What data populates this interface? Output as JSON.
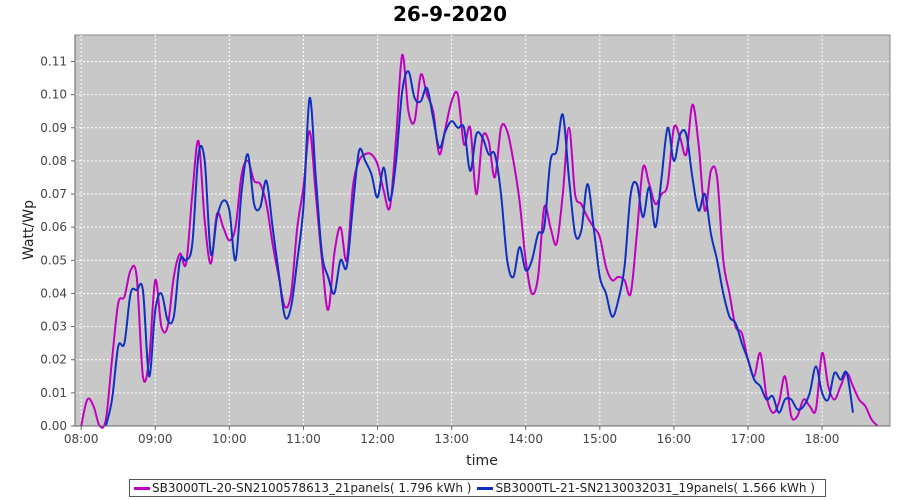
{
  "chart_data": {
    "type": "line",
    "title": "26-9-2020",
    "xlabel": "time",
    "ylabel": "Watt/Wp",
    "x_ticks": [
      "08:00",
      "09:00",
      "10:00",
      "11:00",
      "12:00",
      "13:00",
      "14:00",
      "15:00",
      "16:00",
      "17:00",
      "18:00"
    ],
    "y_ticks": [
      "0.00",
      "0.01",
      "0.02",
      "0.03",
      "0.04",
      "0.05",
      "0.06",
      "0.07",
      "0.08",
      "0.09",
      "0.10",
      "0.11"
    ],
    "xlim": [
      "07:55",
      "18:55"
    ],
    "ylim": [
      0,
      0.118
    ],
    "grid": true,
    "background": "#c8c8c8",
    "legend_position": "bottom",
    "series": [
      {
        "name": "SB3000TL-20-SN2100578613_21panels( 1.796 kWh )",
        "color": "#c000c0",
        "x": [
          "08:00",
          "08:05",
          "08:10",
          "08:15",
          "08:20",
          "08:25",
          "08:30",
          "08:35",
          "08:40",
          "08:45",
          "08:50",
          "08:55",
          "09:00",
          "09:05",
          "09:10",
          "09:15",
          "09:20",
          "09:25",
          "09:30",
          "09:35",
          "09:40",
          "09:45",
          "09:50",
          "09:55",
          "10:00",
          "10:05",
          "10:10",
          "10:15",
          "10:20",
          "10:25",
          "10:30",
          "10:35",
          "10:40",
          "10:45",
          "10:50",
          "10:55",
          "11:00",
          "11:05",
          "11:10",
          "11:15",
          "11:20",
          "11:25",
          "11:30",
          "11:35",
          "11:40",
          "11:45",
          "11:50",
          "11:55",
          "12:00",
          "12:05",
          "12:10",
          "12:15",
          "12:20",
          "12:25",
          "12:30",
          "12:35",
          "12:40",
          "12:45",
          "12:50",
          "12:55",
          "13:00",
          "13:05",
          "13:10",
          "13:15",
          "13:20",
          "13:25",
          "13:30",
          "13:35",
          "13:40",
          "13:45",
          "13:50",
          "13:55",
          "14:00",
          "14:05",
          "14:10",
          "14:15",
          "14:20",
          "14:25",
          "14:30",
          "14:35",
          "14:40",
          "14:45",
          "14:50",
          "14:55",
          "15:00",
          "15:05",
          "15:10",
          "15:15",
          "15:20",
          "15:25",
          "15:30",
          "15:35",
          "15:40",
          "15:45",
          "15:50",
          "15:55",
          "16:00",
          "16:05",
          "16:10",
          "16:15",
          "16:20",
          "16:25",
          "16:30",
          "16:35",
          "16:40",
          "16:45",
          "16:50",
          "16:55",
          "17:00",
          "17:05",
          "17:10",
          "17:15",
          "17:20",
          "17:25",
          "17:30",
          "17:35",
          "17:40",
          "17:45",
          "17:50",
          "17:55",
          "18:00",
          "18:05",
          "18:10",
          "18:15",
          "18:20",
          "18:25",
          "18:30",
          "18:35",
          "18:40",
          "18:45"
        ],
        "values": [
          0.0,
          0.008,
          0.006,
          0.0,
          0.002,
          0.02,
          0.037,
          0.039,
          0.047,
          0.045,
          0.015,
          0.02,
          0.044,
          0.03,
          0.03,
          0.045,
          0.052,
          0.049,
          0.07,
          0.086,
          0.062,
          0.049,
          0.064,
          0.06,
          0.056,
          0.06,
          0.076,
          0.08,
          0.074,
          0.073,
          0.067,
          0.055,
          0.045,
          0.036,
          0.04,
          0.06,
          0.072,
          0.089,
          0.07,
          0.05,
          0.035,
          0.052,
          0.06,
          0.05,
          0.072,
          0.08,
          0.082,
          0.082,
          0.079,
          0.071,
          0.066,
          0.087,
          0.112,
          0.095,
          0.092,
          0.106,
          0.1,
          0.095,
          0.082,
          0.09,
          0.098,
          0.1,
          0.085,
          0.09,
          0.07,
          0.087,
          0.086,
          0.075,
          0.09,
          0.089,
          0.08,
          0.068,
          0.05,
          0.04,
          0.045,
          0.066,
          0.06,
          0.055,
          0.07,
          0.09,
          0.07,
          0.067,
          0.063,
          0.06,
          0.057,
          0.048,
          0.044,
          0.045,
          0.044,
          0.04,
          0.058,
          0.078,
          0.073,
          0.067,
          0.07,
          0.073,
          0.09,
          0.087,
          0.082,
          0.097,
          0.085,
          0.065,
          0.077,
          0.075,
          0.05,
          0.04,
          0.03,
          0.028,
          0.02,
          0.015,
          0.022,
          0.009,
          0.004,
          0.007,
          0.015,
          0.003,
          0.003,
          0.008,
          0.006,
          0.005,
          0.022,
          0.012,
          0.008,
          0.012,
          0.016,
          0.012,
          0.008,
          0.006,
          0.002,
          0.0
        ]
      },
      {
        "name": "SB3000TL-21-SN2130032031_19panels( 1.566 kWh )",
        "color": "#1030c0",
        "x": [
          "08:00",
          "08:05",
          "08:10",
          "08:15",
          "08:20",
          "08:25",
          "08:30",
          "08:35",
          "08:40",
          "08:45",
          "08:50",
          "08:55",
          "09:00",
          "09:05",
          "09:10",
          "09:15",
          "09:20",
          "09:25",
          "09:30",
          "09:35",
          "09:40",
          "09:45",
          "09:50",
          "09:55",
          "10:00",
          "10:05",
          "10:10",
          "10:15",
          "10:20",
          "10:25",
          "10:30",
          "10:35",
          "10:40",
          "10:45",
          "10:50",
          "10:55",
          "11:00",
          "11:05",
          "11:10",
          "11:15",
          "11:20",
          "11:25",
          "11:30",
          "11:35",
          "11:40",
          "11:45",
          "11:50",
          "11:55",
          "12:00",
          "12:05",
          "12:10",
          "12:15",
          "12:20",
          "12:25",
          "12:30",
          "12:35",
          "12:40",
          "12:45",
          "12:50",
          "12:55",
          "13:00",
          "13:05",
          "13:10",
          "13:15",
          "13:20",
          "13:25",
          "13:30",
          "13:35",
          "13:40",
          "13:45",
          "13:50",
          "13:55",
          "14:00",
          "14:05",
          "14:10",
          "14:15",
          "14:20",
          "14:25",
          "14:30",
          "14:35",
          "14:40",
          "14:45",
          "14:50",
          "14:55",
          "15:00",
          "15:05",
          "15:10",
          "15:15",
          "15:20",
          "15:25",
          "15:30",
          "15:35",
          "15:40",
          "15:45",
          "15:50",
          "15:55",
          "16:00",
          "16:05",
          "16:10",
          "16:15",
          "16:20",
          "16:25",
          "16:30",
          "16:35",
          "16:40",
          "16:45",
          "16:50",
          "16:55",
          "17:00",
          "17:05",
          "17:10",
          "17:15",
          "17:20",
          "17:25",
          "17:30",
          "17:35",
          "17:40",
          "17:45",
          "17:50",
          "17:55",
          "18:00",
          "18:05",
          "18:10",
          "18:15",
          "18:20",
          "18:25",
          "18:30",
          "18:35",
          "18:40",
          "18:45"
        ],
        "values": [
          null,
          null,
          null,
          null,
          0.0,
          0.008,
          0.024,
          0.025,
          0.04,
          0.041,
          0.041,
          0.015,
          0.035,
          0.04,
          0.032,
          0.033,
          0.05,
          0.05,
          0.055,
          0.082,
          0.08,
          0.052,
          0.063,
          0.068,
          0.065,
          0.05,
          0.071,
          0.082,
          0.067,
          0.066,
          0.074,
          0.06,
          0.046,
          0.033,
          0.036,
          0.05,
          0.066,
          0.099,
          0.075,
          0.052,
          0.045,
          0.04,
          0.05,
          0.048,
          0.066,
          0.083,
          0.08,
          0.076,
          0.069,
          0.078,
          0.068,
          0.08,
          0.101,
          0.107,
          0.099,
          0.098,
          0.102,
          0.093,
          0.084,
          0.089,
          0.092,
          0.09,
          0.09,
          0.077,
          0.088,
          0.087,
          0.082,
          0.082,
          0.07,
          0.05,
          0.045,
          0.054,
          0.047,
          0.05,
          0.058,
          0.06,
          0.08,
          0.083,
          0.094,
          0.075,
          0.058,
          0.059,
          0.073,
          0.06,
          0.045,
          0.04,
          0.033,
          0.038,
          0.048,
          0.07,
          0.073,
          0.063,
          0.072,
          0.06,
          0.075,
          0.09,
          0.08,
          0.088,
          0.088,
          0.075,
          0.065,
          0.07,
          0.058,
          0.05,
          0.04,
          0.033,
          0.031,
          0.025,
          0.02,
          0.014,
          0.012,
          0.008,
          0.009,
          0.004,
          0.008,
          0.008,
          0.005,
          0.006,
          0.01,
          0.018,
          0.01,
          0.008,
          0.016,
          0.014,
          0.016,
          0.004,
          null,
          null,
          null,
          null
        ]
      }
    ]
  }
}
